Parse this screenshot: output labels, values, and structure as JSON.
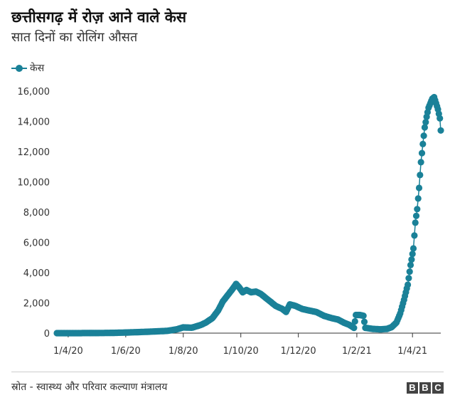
{
  "header": {
    "title": "छत्तीसगढ़ में रोज़ आने वाले केस",
    "subtitle": "सात दिनों का रोलिंग औसत"
  },
  "legend": {
    "label": "केस"
  },
  "footer": {
    "source": "स्रोत - स्वास्थ्य और परिवार कल्याण मंत्रालय",
    "logo": [
      "B",
      "B",
      "C"
    ]
  },
  "colors": {
    "series": "#1a8198",
    "axis": "#333333"
  },
  "chart_data": {
    "type": "line",
    "title": "छत्तीसगढ़ में रोज़ आने वाले केस",
    "subtitle": "सात दिनों का रोलिंग औसत",
    "xlabel": "",
    "ylabel": "",
    "x_ticks": [
      "1/4/20",
      "1/6/20",
      "1/8/20",
      "1/10/20",
      "1/12/20",
      "1/2/21",
      "1/4/21"
    ],
    "y_ticks": [
      "0",
      "2,000",
      "4,000",
      "6,000",
      "8,000",
      "10,000",
      "12,000",
      "14,000",
      "16,000"
    ],
    "ylim": [
      0,
      16000
    ],
    "xlim": [
      "2020-03-20",
      "2021-05-01"
    ],
    "legend_position": "top-left",
    "grid": false,
    "series": [
      {
        "name": "केस",
        "points": [
          [
            "2020-03-20",
            0
          ],
          [
            "2020-04-01",
            0
          ],
          [
            "2020-05-01",
            5
          ],
          [
            "2020-05-20",
            20
          ],
          [
            "2020-06-01",
            40
          ],
          [
            "2020-06-20",
            80
          ],
          [
            "2020-07-01",
            110
          ],
          [
            "2020-07-15",
            150
          ],
          [
            "2020-07-25",
            250
          ],
          [
            "2020-08-01",
            380
          ],
          [
            "2020-08-10",
            360
          ],
          [
            "2020-08-15",
            450
          ],
          [
            "2020-08-20",
            550
          ],
          [
            "2020-08-25",
            700
          ],
          [
            "2020-09-01",
            1000
          ],
          [
            "2020-09-07",
            1500
          ],
          [
            "2020-09-12",
            2100
          ],
          [
            "2020-09-17",
            2500
          ],
          [
            "2020-09-22",
            2900
          ],
          [
            "2020-09-26",
            3250
          ],
          [
            "2020-09-29",
            3050
          ],
          [
            "2020-10-03",
            2700
          ],
          [
            "2020-10-07",
            2850
          ],
          [
            "2020-10-12",
            2700
          ],
          [
            "2020-10-17",
            2750
          ],
          [
            "2020-10-22",
            2600
          ],
          [
            "2020-10-27",
            2350
          ],
          [
            "2020-11-01",
            2100
          ],
          [
            "2020-11-07",
            1800
          ],
          [
            "2020-11-14",
            1600
          ],
          [
            "2020-11-18",
            1400
          ],
          [
            "2020-11-22",
            1900
          ],
          [
            "2020-11-28",
            1800
          ],
          [
            "2020-12-05",
            1600
          ],
          [
            "2020-12-12",
            1500
          ],
          [
            "2020-12-20",
            1400
          ],
          [
            "2020-12-28",
            1150
          ],
          [
            "2021-01-05",
            1000
          ],
          [
            "2021-01-12",
            900
          ],
          [
            "2021-01-18",
            700
          ],
          [
            "2021-01-24",
            550
          ],
          [
            "2021-01-29",
            350
          ],
          [
            "2021-01-31",
            1200
          ],
          [
            "2021-02-04",
            1200
          ],
          [
            "2021-02-08",
            1150
          ],
          [
            "2021-02-10",
            350
          ],
          [
            "2021-02-18",
            280
          ],
          [
            "2021-02-26",
            250
          ],
          [
            "2021-03-05",
            280
          ],
          [
            "2021-03-10",
            400
          ],
          [
            "2021-03-15",
            700
          ],
          [
            "2021-03-19",
            1300
          ],
          [
            "2021-03-23",
            2200
          ],
          [
            "2021-03-27",
            3200
          ],
          [
            "2021-03-30",
            4500
          ],
          [
            "2021-04-02",
            5600
          ],
          [
            "2021-04-04",
            7300
          ],
          [
            "2021-04-06",
            8200
          ],
          [
            "2021-04-08",
            9600
          ],
          [
            "2021-04-10",
            11300
          ],
          [
            "2021-04-12",
            12500
          ],
          [
            "2021-04-14",
            13600
          ],
          [
            "2021-04-16",
            14300
          ],
          [
            "2021-04-18",
            14900
          ],
          [
            "2021-04-20",
            15200
          ],
          [
            "2021-04-22",
            15500
          ],
          [
            "2021-04-24",
            15600
          ],
          [
            "2021-04-26",
            15200
          ],
          [
            "2021-04-28",
            14800
          ],
          [
            "2021-04-30",
            14200
          ],
          [
            "2021-05-01",
            13400
          ]
        ]
      }
    ]
  }
}
